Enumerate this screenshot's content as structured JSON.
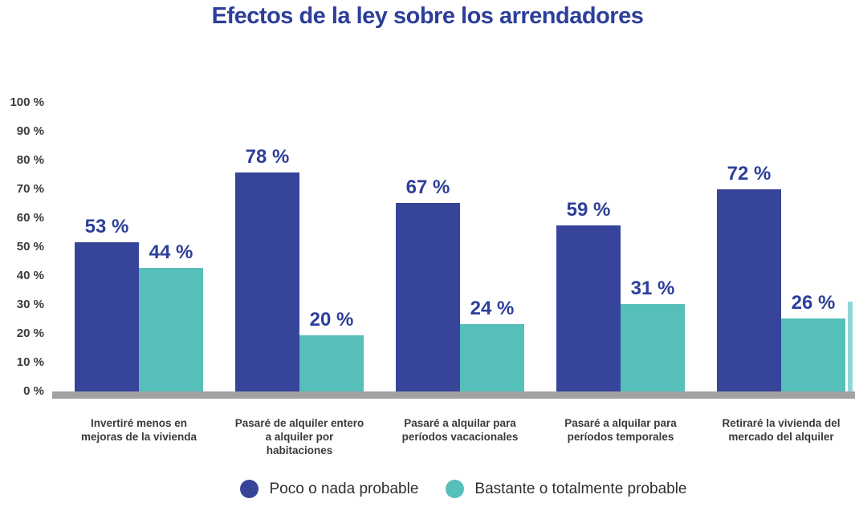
{
  "title": "Efectos de la ley sobre los arrendadores",
  "colors": {
    "title_text": "#2d3f9a",
    "value_label_text": "#2d3f9a",
    "axis_text": "#3a3a3a",
    "baseline": "#a1a1a1",
    "series_blue": "#36459a",
    "series_teal": "#56bfba",
    "cropped_sliver": "#8fd8d4"
  },
  "chart_data": {
    "type": "bar",
    "title": "Efectos de la ley sobre los arrendadores",
    "categories": [
      "Invertiré menos en mejoras de la vivienda",
      "Pasaré de alquiler entero a alquiler por habitaciones",
      "Pasaré a alquilar para períodos vacacionales",
      "Pasaré a alquilar para períodos temporales",
      "Retiraré la vivienda del mercado del alquiler"
    ],
    "series": [
      {
        "name": "Poco o nada probable",
        "color": "#36459a",
        "values": [
          53,
          78,
          67,
          59,
          72
        ]
      },
      {
        "name": "Bastante o totalmente probable",
        "color": "#56bfba",
        "values": [
          44,
          20,
          24,
          31,
          26
        ]
      }
    ],
    "value_suffix": " %",
    "xlabel": "",
    "ylabel": "",
    "ylim": [
      0,
      100
    ],
    "ytick_labels": [
      "0 %",
      "10 %",
      "20 %",
      "30 %",
      "40 %",
      "50 %",
      "60 %",
      "70 %",
      "80 %",
      "90 %",
      "100 %"
    ],
    "grid": false,
    "data_labels": "above bars",
    "legend_position": "bottom"
  }
}
